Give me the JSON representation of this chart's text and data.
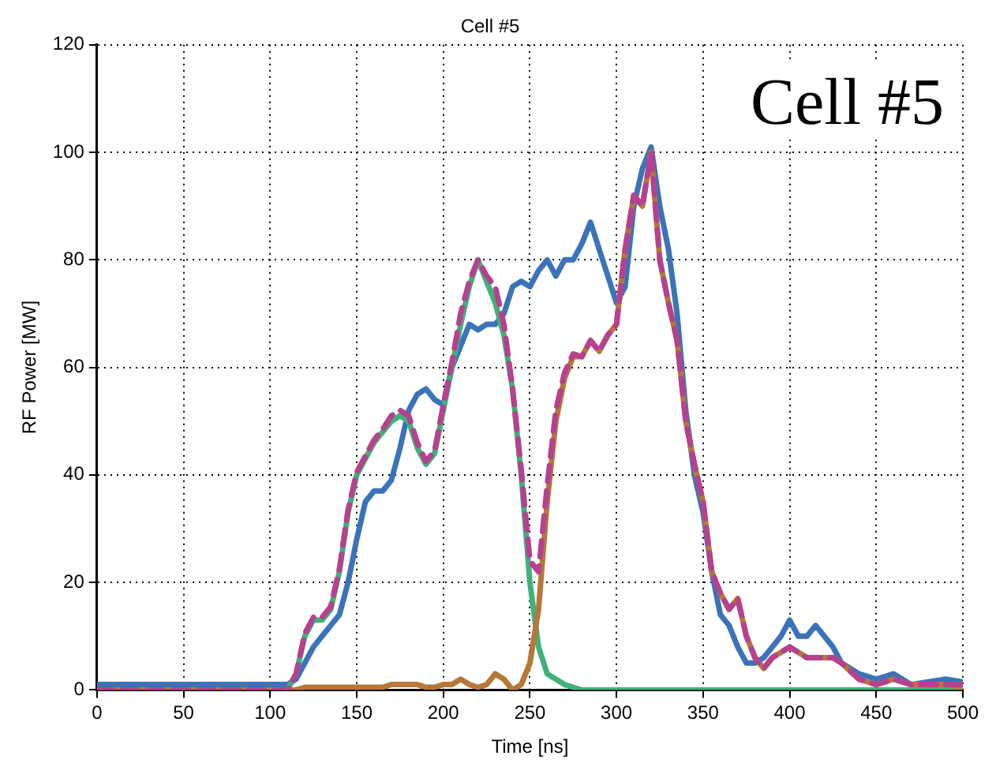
{
  "chart_data": {
    "type": "line",
    "title": "Cell #5",
    "xlabel": "Time [ns]",
    "ylabel": "RF Power [MW]",
    "annotations": [
      "Cell #5"
    ],
    "x": [
      0,
      50,
      100,
      110,
      115,
      120,
      125,
      130,
      135,
      140,
      145,
      150,
      155,
      160,
      165,
      170,
      175,
      180,
      185,
      190,
      195,
      200,
      205,
      210,
      215,
      220,
      225,
      230,
      235,
      240,
      245,
      250,
      255,
      260,
      265,
      270,
      275,
      280,
      285,
      290,
      295,
      300,
      305,
      310,
      315,
      320,
      325,
      330,
      335,
      340,
      345,
      350,
      355,
      360,
      365,
      370,
      375,
      380,
      385,
      390,
      395,
      400,
      405,
      410,
      415,
      420,
      425,
      430,
      440,
      450,
      460,
      470,
      480,
      490,
      500
    ],
    "series": [
      {
        "color": "#3b73b9",
        "line_style": "solid",
        "values": [
          1,
          1,
          1,
          1,
          2,
          5,
          8,
          10,
          12,
          14,
          20,
          28,
          35,
          37,
          37,
          39,
          45,
          52,
          55,
          56,
          54,
          53,
          60,
          64,
          68,
          67,
          68,
          68,
          70,
          75,
          76,
          75,
          78,
          80,
          77,
          80,
          80,
          83,
          87,
          82,
          77,
          72,
          75,
          90,
          97,
          101,
          90,
          82,
          70,
          52,
          40,
          33,
          22,
          14,
          12,
          8,
          5,
          5,
          6,
          8,
          10,
          13,
          10,
          10,
          12,
          10,
          8,
          5,
          3,
          2,
          3,
          1,
          1.5,
          2,
          1.5
        ]
      },
      {
        "color": "#41b07a",
        "line_style": "solid",
        "values": [
          null,
          null,
          null,
          0,
          3,
          10,
          13,
          13,
          15,
          22,
          33,
          40,
          43,
          46,
          48,
          50,
          51,
          50,
          45,
          42,
          44,
          52,
          60,
          68,
          75,
          80,
          76,
          72,
          66,
          56,
          40,
          20,
          8,
          3,
          2,
          1,
          0.5,
          0,
          0,
          0,
          0,
          0,
          0,
          0,
          0,
          0,
          0,
          0,
          0,
          0,
          0,
          0,
          0,
          0,
          0,
          0,
          0,
          0,
          0,
          0,
          0,
          0,
          0,
          0,
          0,
          0,
          0,
          0,
          0,
          0,
          0,
          0,
          0,
          0,
          0
        ]
      },
      {
        "color": "#b5783a",
        "line_style": "solid",
        "values": [
          0,
          0,
          0,
          0,
          0,
          0.5,
          0.5,
          0.5,
          0.5,
          0.5,
          0.5,
          0.5,
          0.5,
          0.5,
          0.5,
          1,
          1,
          1,
          1,
          0.5,
          0.5,
          1,
          1,
          2,
          1,
          0.5,
          1,
          3,
          2,
          0,
          1,
          5,
          15,
          35,
          50,
          58,
          62,
          62,
          65,
          63,
          66,
          68,
          82,
          92,
          90,
          100,
          80,
          72,
          65,
          50,
          42,
          35,
          22,
          18,
          15,
          17,
          10,
          6,
          4,
          6,
          7,
          8,
          7,
          6,
          6,
          6,
          6,
          5,
          2,
          1,
          2,
          1,
          1,
          1,
          0.5
        ]
      },
      {
        "color": "#b5418f",
        "line_style": "dashed",
        "values": [
          0,
          0,
          0,
          0,
          3,
          10.5,
          13.5,
          13.5,
          15.5,
          22.5,
          33.5,
          40.5,
          43.5,
          46.5,
          48.5,
          51,
          52,
          51,
          46,
          42.5,
          44.5,
          53,
          61,
          70,
          76,
          80,
          77,
          75,
          68,
          56,
          41,
          24,
          22,
          38,
          52,
          59,
          62.5,
          62,
          65,
          63,
          66,
          68,
          82,
          92,
          90,
          100,
          80,
          72,
          65,
          50,
          42,
          35,
          22,
          18,
          15,
          17,
          10,
          6,
          4,
          6,
          7,
          8,
          7,
          6,
          6,
          6,
          6,
          5,
          2,
          1,
          2,
          1,
          1,
          1,
          1
        ]
      }
    ],
    "xlim": [
      0,
      500
    ],
    "xticks": [
      0,
      50,
      100,
      150,
      200,
      250,
      300,
      350,
      400,
      450,
      500
    ],
    "ylim": [
      0,
      120
    ],
    "yticks": [
      0,
      20,
      40,
      60,
      80,
      100,
      120
    ],
    "grid": true,
    "legend": false,
    "marker": "none"
  }
}
